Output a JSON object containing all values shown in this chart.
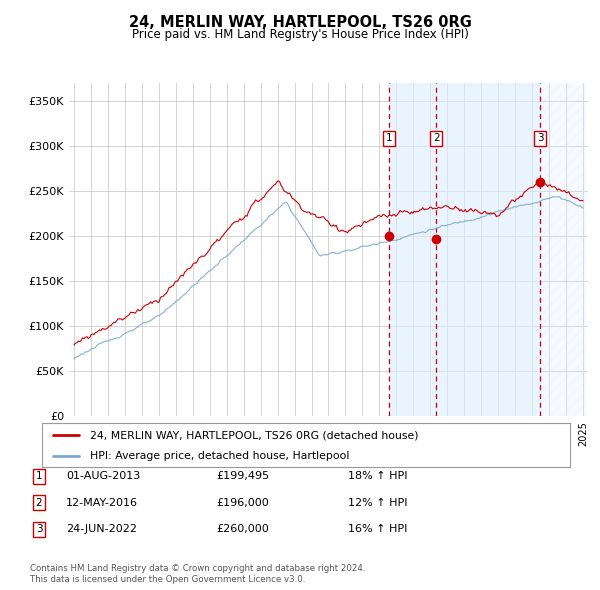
{
  "title": "24, MERLIN WAY, HARTLEPOOL, TS26 0RG",
  "subtitle": "Price paid vs. HM Land Registry's House Price Index (HPI)",
  "ylim": [
    0,
    370000
  ],
  "yticks": [
    0,
    50000,
    100000,
    150000,
    200000,
    250000,
    300000,
    350000
  ],
  "ytick_labels": [
    "£0",
    "£50K",
    "£100K",
    "£150K",
    "£200K",
    "£250K",
    "£300K",
    "£350K"
  ],
  "legend_line1": "24, MERLIN WAY, HARTLEPOOL, TS26 0RG (detached house)",
  "legend_line2": "HPI: Average price, detached house, Hartlepool",
  "transactions": [
    {
      "label": "1",
      "date": "01-AUG-2013",
      "price": "£199,495",
      "change": "18% ↑ HPI",
      "year": 2013.58
    },
    {
      "label": "2",
      "date": "12-MAY-2016",
      "price": "£196,000",
      "change": "12% ↑ HPI",
      "year": 2016.36
    },
    {
      "label": "3",
      "date": "24-JUN-2022",
      "price": "£260,000",
      "change": "16% ↑ HPI",
      "year": 2022.48
    }
  ],
  "transaction_prices": [
    199495,
    196000,
    260000
  ],
  "footnote1": "Contains HM Land Registry data © Crown copyright and database right 2024.",
  "footnote2": "This data is licensed under the Open Government Licence v3.0.",
  "red_color": "#cc0000",
  "blue_color": "#7ba7d4",
  "shade_color": "#ddeeff",
  "hatch_color": "#bbccdd",
  "grid_color": "#cccccc",
  "bg_color": "#ffffff"
}
